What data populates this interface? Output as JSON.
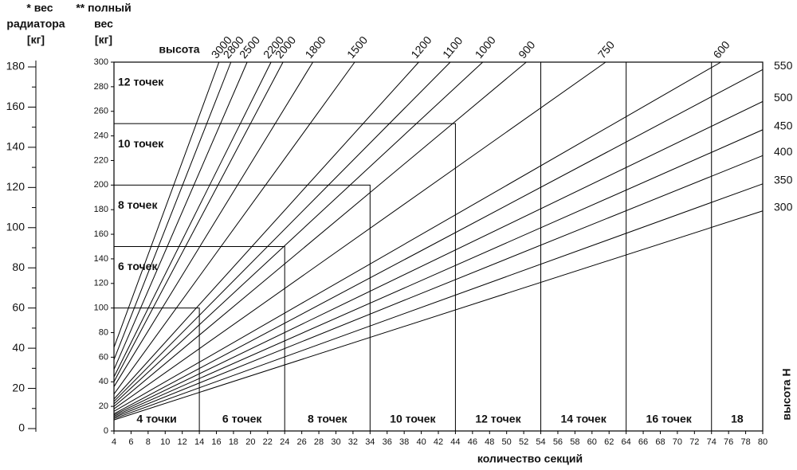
{
  "chart_data": {
    "type": "line",
    "x_label": "количество секций",
    "y_label": [
      "** полный",
      "вес",
      "[кг]"
    ],
    "height_label": "высота",
    "right_label": "высота H",
    "xlim": [
      4,
      80
    ],
    "xticks": [
      4,
      6,
      8,
      10,
      12,
      14,
      16,
      18,
      20,
      22,
      24,
      26,
      28,
      30,
      32,
      34,
      36,
      38,
      40,
      42,
      44,
      46,
      48,
      50,
      52,
      54,
      56,
      58,
      60,
      62,
      64,
      66,
      68,
      70,
      72,
      74,
      76,
      78,
      80
    ],
    "ylim": [
      0,
      300
    ],
    "yticks": [
      0,
      20,
      40,
      60,
      80,
      100,
      120,
      140,
      160,
      180,
      200,
      220,
      240,
      260,
      280,
      300
    ],
    "color": "#000000",
    "left_axis": {
      "title": [
        "* вес",
        "радиатора",
        "[кг]"
      ],
      "ylim": [
        0,
        180
      ],
      "yticks": [
        0,
        20,
        40,
        60,
        80,
        100,
        120,
        140,
        160,
        180
      ],
      "minor_yticks": [
        10,
        30,
        50,
        70,
        90,
        110,
        130,
        150,
        170
      ]
    },
    "series": [
      {
        "name": "3000",
        "x": [
          4,
          16.3
        ],
        "values": [
          68,
          300
        ]
      },
      {
        "name": "2800",
        "x": [
          4,
          17.7
        ],
        "values": [
          58,
          300
        ]
      },
      {
        "name": "2500",
        "x": [
          4,
          19.6
        ],
        "values": [
          50,
          300
        ]
      },
      {
        "name": "2200",
        "x": [
          4,
          22.4
        ],
        "values": [
          44,
          300
        ]
      },
      {
        "name": "2000",
        "x": [
          4,
          23.8
        ],
        "values": [
          40,
          300
        ]
      },
      {
        "name": "1800",
        "x": [
          4,
          27.3
        ],
        "values": [
          36,
          300
        ]
      },
      {
        "name": "1500",
        "x": [
          4,
          32.2
        ],
        "values": [
          30,
          300
        ]
      },
      {
        "name": "1200",
        "x": [
          4,
          39.7
        ],
        "values": [
          26,
          300
        ]
      },
      {
        "name": "1100",
        "x": [
          4,
          43.4
        ],
        "values": [
          24,
          300
        ]
      },
      {
        "name": "1000",
        "x": [
          4,
          47.2
        ],
        "values": [
          22,
          300
        ]
      },
      {
        "name": "900",
        "x": [
          4,
          52.3
        ],
        "values": [
          20,
          300
        ]
      },
      {
        "name": "750",
        "x": [
          4,
          61.6
        ],
        "values": [
          18,
          300
        ]
      },
      {
        "name": "600",
        "x": [
          4,
          75.1
        ],
        "values": [
          16,
          300
        ]
      },
      {
        "name": "550",
        "x": [
          4,
          80
        ],
        "values": [
          14,
          294
        ]
      },
      {
        "name": "500",
        "x": [
          4,
          80
        ],
        "values": [
          13,
          268
        ]
      },
      {
        "name": "450",
        "x": [
          4,
          80
        ],
        "values": [
          12,
          245
        ]
      },
      {
        "name": "400",
        "x": [
          4,
          80
        ],
        "values": [
          11,
          224
        ]
      },
      {
        "name": "350",
        "x": [
          4,
          80
        ],
        "values": [
          10,
          201
        ]
      },
      {
        "name": "300",
        "x": [
          4,
          80
        ],
        "values": [
          9,
          179
        ]
      }
    ],
    "zones": [
      {
        "bottom_label": "4 точки",
        "x_max": 14,
        "y_max": 100
      },
      {
        "bottom_label": "6 точек",
        "left_label": "6 точек",
        "x_max": 24,
        "y_max": 150
      },
      {
        "bottom_label": "8 точек",
        "left_label": "8 точек",
        "x_max": 34,
        "y_max": 200
      },
      {
        "bottom_label": "10 точек",
        "left_label": "10 точек",
        "x_max": 44,
        "y_max": 250
      },
      {
        "bottom_label": "12 точек",
        "left_label": "12 точек",
        "x_max": 54,
        "y_max": 300
      },
      {
        "bottom_label": "14 точек",
        "x_max": 64,
        "y_max": 300
      },
      {
        "bottom_label": "16 точек",
        "x_max": 74,
        "y_max": 300
      },
      {
        "bottom_label": "18",
        "x_max": 80,
        "y_max": 300
      }
    ]
  }
}
